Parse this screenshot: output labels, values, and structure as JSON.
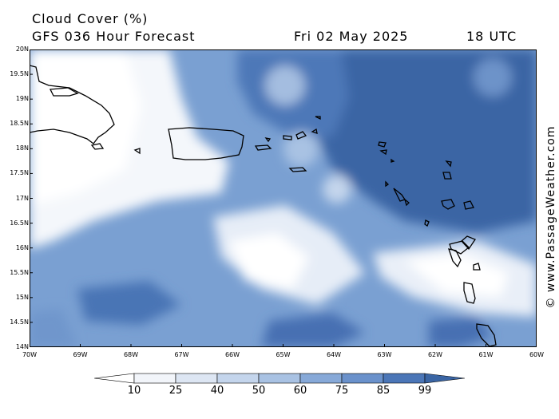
{
  "header": {
    "title": "Cloud Cover (%)",
    "model": "GFS 036 Hour Forecast",
    "date": "Fri 02 May 2025",
    "time": "18 UTC"
  },
  "credit": "© www.PassageWeather.com",
  "axes": {
    "lat_labels": [
      "20N",
      "19.5N",
      "19N",
      "18.5N",
      "18N",
      "17.5N",
      "17N",
      "16.5N",
      "16N",
      "15.5N",
      "15N",
      "14.5N",
      "14N"
    ],
    "lon_labels": [
      "70W",
      "69W",
      "68W",
      "67W",
      "66W",
      "65W",
      "64W",
      "63W",
      "62W",
      "61W",
      "60W"
    ]
  },
  "scale": {
    "labels": [
      "10",
      "25",
      "40",
      "50",
      "60",
      "75",
      "85",
      "99"
    ],
    "colors": [
      "#ffffff",
      "#f2f5fa",
      "#dde6f3",
      "#c4d5ec",
      "#a9c2e3",
      "#87a9d8",
      "#6a91cb",
      "#4b76b7",
      "#3a65a4"
    ]
  },
  "colors": {
    "land_outline": "#000000",
    "frame": "#000000"
  }
}
